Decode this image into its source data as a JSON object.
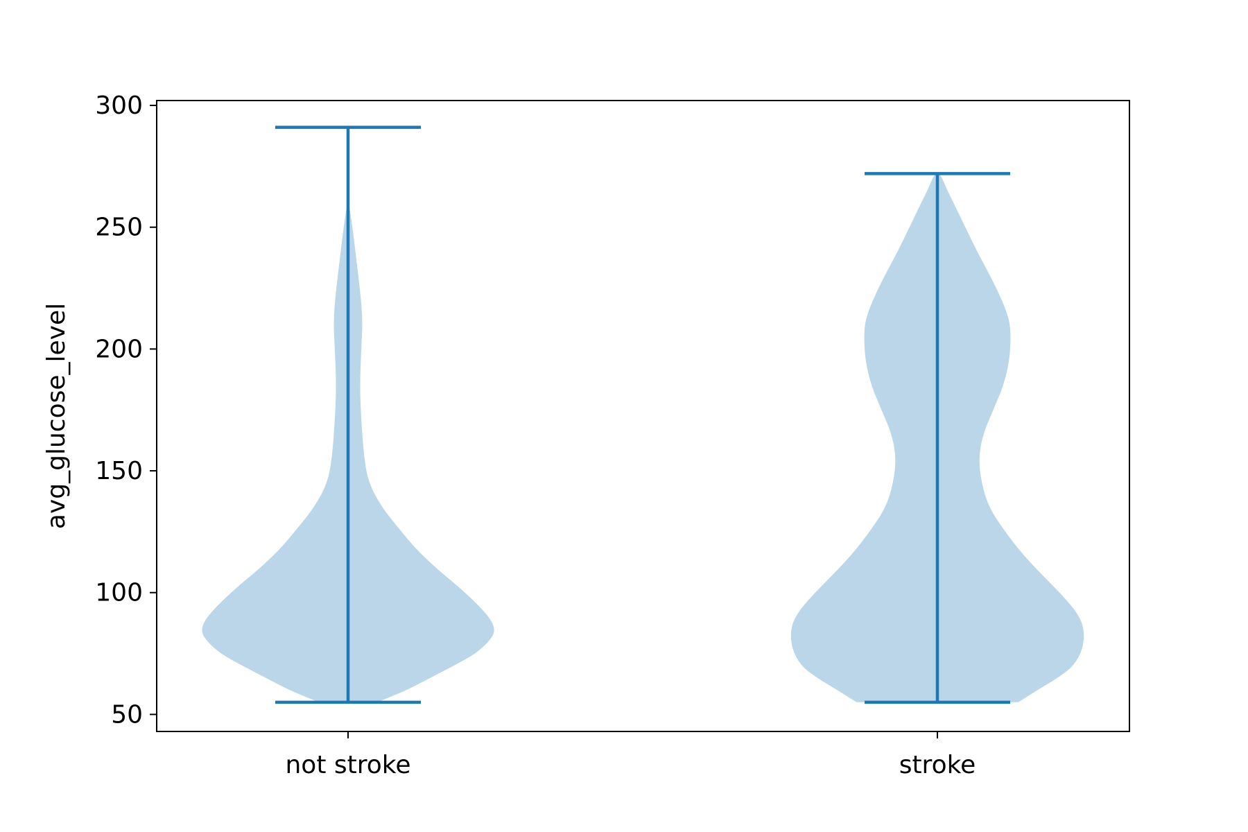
{
  "chart_data": {
    "type": "violin",
    "title": "",
    "xlabel": "",
    "ylabel": "avg_glucose_level",
    "categories": [
      "not stroke",
      "stroke"
    ],
    "ylim": [
      43,
      302
    ],
    "yticks": [
      50,
      100,
      150,
      200,
      250,
      300
    ],
    "grid": false,
    "legend": "none",
    "colors": {
      "body": "#bad6e8",
      "lines": "#1f77b4",
      "axes": "#000000"
    },
    "violins": [
      {
        "category": "not stroke",
        "min": 55,
        "max": 291,
        "profile": [
          [
            55,
            0.2
          ],
          [
            57,
            0.28
          ],
          [
            60,
            0.4
          ],
          [
            65,
            0.56
          ],
          [
            70,
            0.72
          ],
          [
            75,
            0.87
          ],
          [
            80,
            0.96
          ],
          [
            84,
            1.0
          ],
          [
            88,
            0.98
          ],
          [
            92,
            0.93
          ],
          [
            97,
            0.85
          ],
          [
            103,
            0.74
          ],
          [
            110,
            0.6
          ],
          [
            118,
            0.46
          ],
          [
            126,
            0.35
          ],
          [
            135,
            0.23
          ],
          [
            145,
            0.14
          ],
          [
            155,
            0.11
          ],
          [
            170,
            0.09
          ],
          [
            185,
            0.08
          ],
          [
            200,
            0.09
          ],
          [
            212,
            0.1
          ],
          [
            225,
            0.08
          ],
          [
            240,
            0.05
          ],
          [
            250,
            0.03
          ],
          [
            258,
            0.01
          ],
          [
            262,
            0.0
          ]
        ]
      },
      {
        "category": "stroke",
        "min": 55,
        "max": 272,
        "profile": [
          [
            55,
            0.55
          ],
          [
            60,
            0.68
          ],
          [
            65,
            0.82
          ],
          [
            70,
            0.93
          ],
          [
            77,
            0.99
          ],
          [
            84,
            1.0
          ],
          [
            90,
            0.97
          ],
          [
            97,
            0.88
          ],
          [
            105,
            0.75
          ],
          [
            115,
            0.59
          ],
          [
            125,
            0.46
          ],
          [
            135,
            0.35
          ],
          [
            145,
            0.3
          ],
          [
            155,
            0.28
          ],
          [
            165,
            0.31
          ],
          [
            175,
            0.38
          ],
          [
            185,
            0.45
          ],
          [
            195,
            0.49
          ],
          [
            205,
            0.5
          ],
          [
            212,
            0.49
          ],
          [
            220,
            0.44
          ],
          [
            230,
            0.36
          ],
          [
            240,
            0.27
          ],
          [
            250,
            0.19
          ],
          [
            260,
            0.11
          ],
          [
            266,
            0.06
          ],
          [
            272,
            0.02
          ]
        ]
      }
    ]
  }
}
